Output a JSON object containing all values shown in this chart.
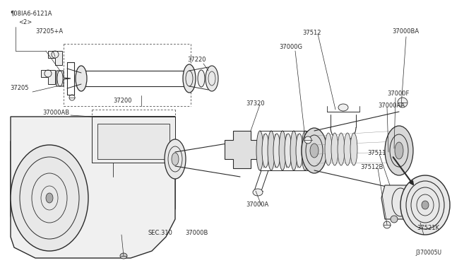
{
  "bg_color": "#ffffff",
  "line_color": "#2a2a2a",
  "fig_width": 6.4,
  "fig_height": 3.72,
  "dpi": 100,
  "diagram_id": "J370005U",
  "xlim": [
    0,
    640
  ],
  "ylim": [
    0,
    372
  ]
}
